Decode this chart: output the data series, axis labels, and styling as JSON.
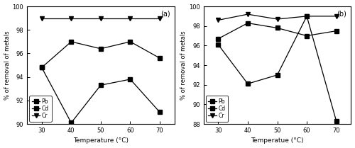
{
  "temperature": [
    30,
    40,
    50,
    60,
    70
  ],
  "panel_a": {
    "Pb": [
      94.8,
      97.0,
      96.4,
      97.0,
      95.6
    ],
    "Cd": [
      94.8,
      90.1,
      93.3,
      93.8,
      91.0
    ],
    "Cr": [
      99.0,
      99.0,
      99.0,
      99.0,
      99.0
    ],
    "ylabel": "% of removal of metals",
    "xlabel": "Temperature (°C)",
    "label": "(a)",
    "ylim": [
      90,
      100
    ],
    "yticks": [
      90,
      92,
      94,
      96,
      98,
      100
    ]
  },
  "panel_b": {
    "Pb": [
      96.7,
      98.3,
      97.8,
      97.0,
      97.5
    ],
    "Cd": [
      96.1,
      92.1,
      93.0,
      99.0,
      88.3
    ],
    "Cr": [
      98.6,
      99.2,
      98.7,
      99.0,
      99.0
    ],
    "ylabel": "% of removal of metals",
    "xlabel": "Temperatue (°C)",
    "label": "(b)",
    "ylim": [
      88,
      100
    ],
    "yticks": [
      88,
      90,
      92,
      94,
      96,
      98,
      100
    ]
  },
  "series": [
    {
      "key": "Pb",
      "marker": "s",
      "markersize": 4,
      "label": "Pb"
    },
    {
      "key": "Cd",
      "marker": "s",
      "markersize": 4,
      "label": "Cd"
    },
    {
      "key": "Cr",
      "marker": "v",
      "markersize": 4,
      "label": "Cr"
    }
  ],
  "line_color": "black",
  "bg_color": "white"
}
